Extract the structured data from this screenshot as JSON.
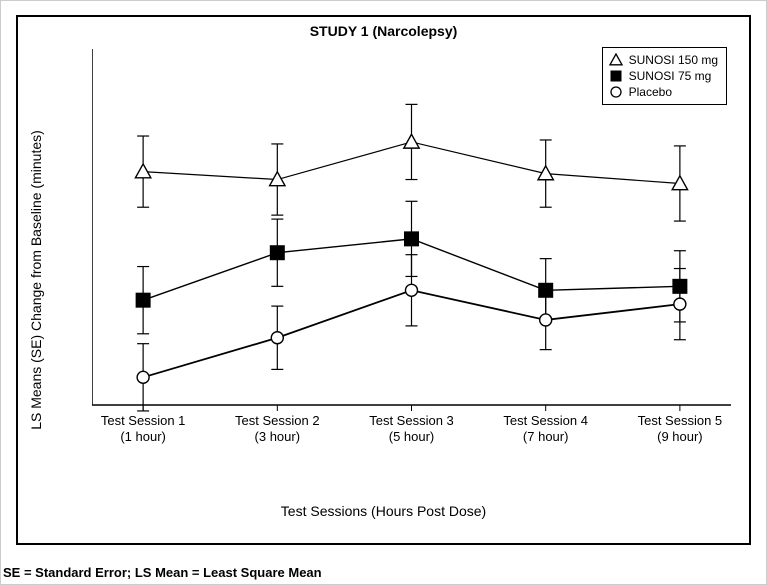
{
  "chart": {
    "type": "line-errorbar",
    "title": "STUDY 1 (Narcolepsy)",
    "footnote": "SE = Standard Error; LS Mean = Least Square Mean",
    "title_fontsize": 14,
    "footnote_fontsize": 13,
    "background_color": "#ffffff",
    "border_color": "#000000",
    "axis_color": "#000000",
    "grid": false,
    "axis_line_width": 1.5,
    "xlabel": "Test Sessions (Hours Post Dose)",
    "ylabel": "LS Means (SE) Change from Baseline (minutes)",
    "label_fontsize": 14,
    "tick_fontsize": 13,
    "ylim": [
      -2,
      16
    ],
    "ytick_step": 2,
    "yticks": [
      -2,
      0,
      2,
      4,
      6,
      8,
      10,
      12,
      14,
      16
    ],
    "x_categories": [
      {
        "line1": "Test Session 1",
        "line2": "(1 hour)"
      },
      {
        "line1": "Test Session 2",
        "line2": "(3 hour)"
      },
      {
        "line1": "Test Session 3",
        "line2": "(5 hour)"
      },
      {
        "line1": "Test Session 4",
        "line2": "(7 hour)"
      },
      {
        "line1": "Test Session 5",
        "line2": "(9 hour)"
      }
    ],
    "series": [
      {
        "name": "SUNOSI 150 mg",
        "marker": "triangle-open",
        "marker_fill": "#ffffff",
        "marker_stroke": "#000000",
        "marker_size": 7,
        "line_color": "#000000",
        "line_width": 1.2,
        "values": [
          9.8,
          9.4,
          11.3,
          9.7,
          9.2
        ],
        "se": [
          1.8,
          1.8,
          1.9,
          1.7,
          1.9
        ]
      },
      {
        "name": "SUNOSI 75 mg",
        "marker": "square-filled",
        "marker_fill": "#000000",
        "marker_stroke": "#000000",
        "marker_size": 7,
        "line_color": "#000000",
        "line_width": 1.4,
        "values": [
          3.3,
          5.7,
          6.4,
          3.8,
          4.0
        ],
        "se": [
          1.7,
          1.7,
          1.9,
          1.6,
          1.8
        ]
      },
      {
        "name": "Placebo",
        "marker": "circle-open",
        "marker_fill": "#ffffff",
        "marker_stroke": "#000000",
        "marker_size": 6,
        "line_color": "#000000",
        "line_width": 1.8,
        "values": [
          -0.6,
          1.4,
          3.8,
          2.3,
          3.1
        ],
        "se": [
          1.7,
          1.6,
          1.8,
          1.5,
          1.8
        ]
      }
    ],
    "errorbar_cap_width": 12,
    "errorbar_line_width": 1.2,
    "legend": {
      "position": "top-right",
      "border_color": "#000000",
      "background": "#ffffff",
      "fontsize": 12
    }
  }
}
